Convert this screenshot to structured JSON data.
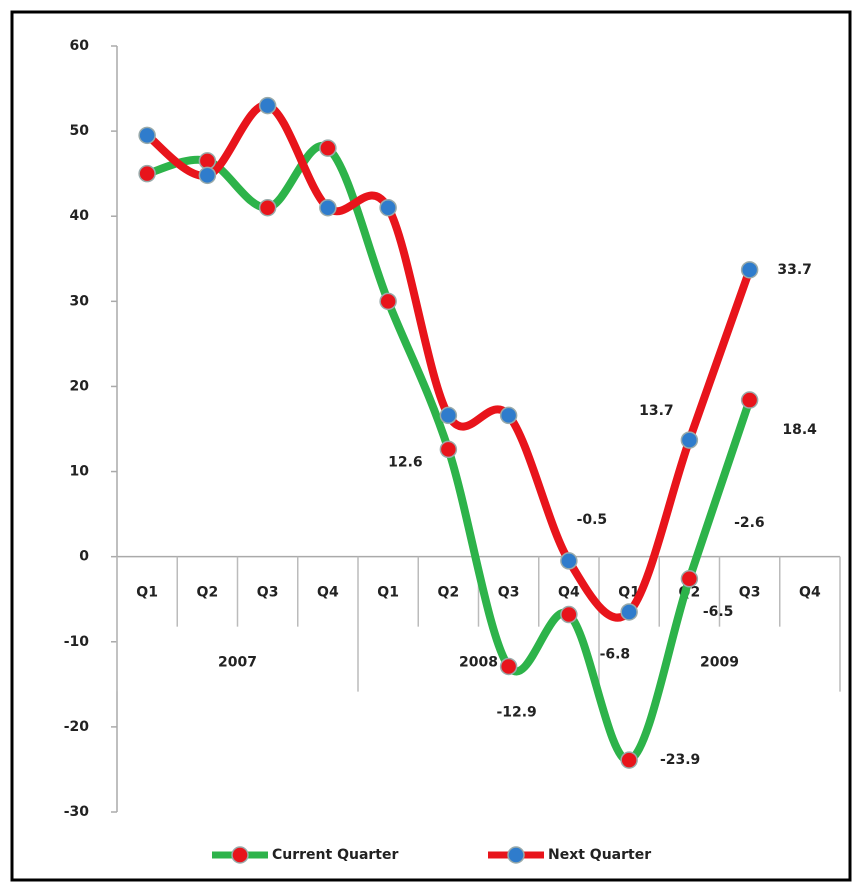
{
  "chart_data": {
    "type": "line",
    "categories": [
      "Q1",
      "Q2",
      "Q3",
      "Q4",
      "Q1",
      "Q2",
      "Q3",
      "Q4",
      "Q1",
      "Q2",
      "Q3",
      "Q4"
    ],
    "category_groups": [
      "2007",
      "2007",
      "2007",
      "2007",
      "2008",
      "2008",
      "2008",
      "2008",
      "2009",
      "2009",
      "2009",
      "2009"
    ],
    "series": [
      {
        "name": "Current Quarter",
        "color": "#2db34a",
        "marker_color": "#e8141b",
        "values": [
          45,
          46.5,
          41,
          48,
          30,
          12.6,
          -12.9,
          -6.8,
          -23.9,
          -2.6,
          18.4,
          null
        ],
        "value_labels": [
          null,
          null,
          null,
          null,
          null,
          "12.6",
          "-12.9",
          "-6.8",
          "-23.9",
          "-2.6",
          "18.4",
          null
        ]
      },
      {
        "name": "Next Quarter",
        "color": "#e8141b",
        "marker_color": "#2f7ccc",
        "values": [
          49.5,
          44.8,
          53,
          41,
          41,
          16.6,
          16.6,
          -0.5,
          -6.5,
          13.7,
          33.7,
          null
        ],
        "value_labels": [
          null,
          null,
          null,
          null,
          null,
          null,
          null,
          "-0.5",
          "-6.5",
          "13.7",
          "33.7",
          null
        ]
      }
    ],
    "ylim": [
      -30,
      60
    ],
    "yticks": [
      -30,
      -20,
      -10,
      0,
      10,
      20,
      30,
      40,
      50,
      60
    ],
    "grid": false,
    "legend": "bottom"
  }
}
